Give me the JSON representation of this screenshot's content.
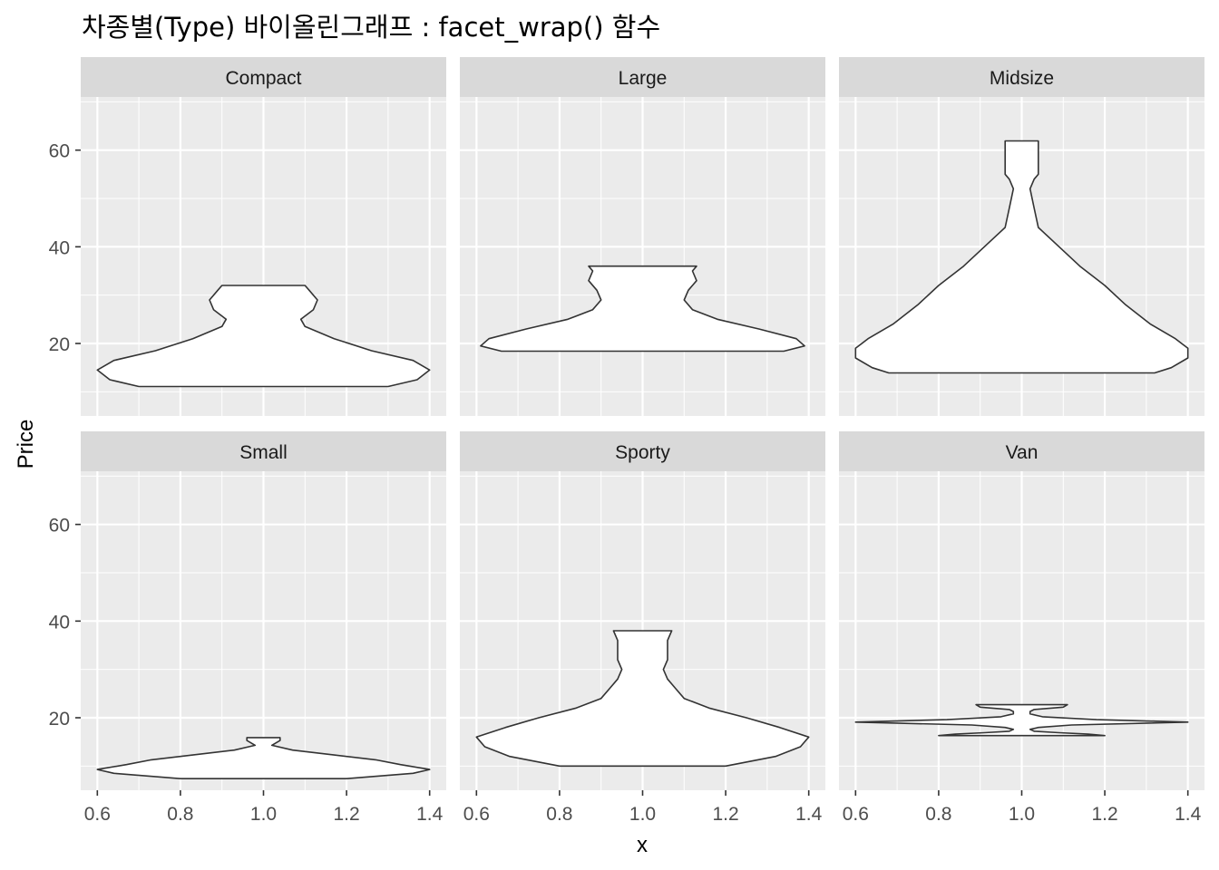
{
  "chart_data": {
    "type": "violin",
    "title": "차종별(Type) 바이올린그래프 : facet_wrap() 함수",
    "xlabel": "x",
    "ylabel": "Price",
    "xlim": [
      0.56,
      1.44
    ],
    "ylim": [
      5,
      71
    ],
    "x_ticks": [
      0.6,
      0.8,
      1.0,
      1.2,
      1.4
    ],
    "x_tick_labels": [
      "0.6",
      "0.8",
      "1.0",
      "1.2",
      "1.4"
    ],
    "y_ticks": [
      20,
      40,
      60
    ],
    "y_tick_labels": [
      "20",
      "40",
      "60"
    ],
    "grid": true,
    "facet_layout": {
      "rows": 2,
      "cols": 3
    },
    "panels": [
      {
        "label": "Compact",
        "profile": [
          [
            11.1,
            0.3
          ],
          [
            12.5,
            0.37
          ],
          [
            14.5,
            0.4
          ],
          [
            16.5,
            0.36
          ],
          [
            18.5,
            0.26
          ],
          [
            21,
            0.17
          ],
          [
            23.5,
            0.1
          ],
          [
            25,
            0.09
          ],
          [
            27,
            0.12
          ],
          [
            29,
            0.13
          ],
          [
            31,
            0.11
          ],
          [
            32,
            0.1
          ]
        ]
      },
      {
        "label": "Large",
        "profile": [
          [
            18.4,
            0.34
          ],
          [
            19.5,
            0.39
          ],
          [
            21,
            0.37
          ],
          [
            23,
            0.28
          ],
          [
            25,
            0.18
          ],
          [
            27,
            0.12
          ],
          [
            29,
            0.1
          ],
          [
            31,
            0.11
          ],
          [
            33,
            0.13
          ],
          [
            35,
            0.12
          ],
          [
            36,
            0.13
          ]
        ]
      },
      {
        "label": "Midsize",
        "profile": [
          [
            13.9,
            0.32
          ],
          [
            15,
            0.36
          ],
          [
            17,
            0.4
          ],
          [
            19,
            0.4
          ],
          [
            21,
            0.37
          ],
          [
            24,
            0.31
          ],
          [
            28,
            0.25
          ],
          [
            32,
            0.2
          ],
          [
            36,
            0.14
          ],
          [
            40,
            0.09
          ],
          [
            44,
            0.04
          ],
          [
            48,
            0.03
          ],
          [
            52,
            0.02
          ],
          [
            54,
            0.03
          ],
          [
            55,
            0.04
          ],
          [
            61.9,
            0.04
          ]
        ]
      },
      {
        "label": "Small",
        "profile": [
          [
            7.4,
            0.2
          ],
          [
            8.5,
            0.36
          ],
          [
            9.3,
            0.4
          ],
          [
            10.3,
            0.33
          ],
          [
            11.3,
            0.27
          ],
          [
            12.3,
            0.17
          ],
          [
            13.3,
            0.07
          ],
          [
            14.3,
            0.02
          ],
          [
            15.3,
            0.04
          ],
          [
            15.9,
            0.04
          ]
        ]
      },
      {
        "label": "Sporty",
        "profile": [
          [
            10,
            0.2
          ],
          [
            12,
            0.32
          ],
          [
            14,
            0.38
          ],
          [
            16,
            0.4
          ],
          [
            18,
            0.33
          ],
          [
            20,
            0.25
          ],
          [
            22,
            0.16
          ],
          [
            24,
            0.1
          ],
          [
            26,
            0.08
          ],
          [
            28,
            0.06
          ],
          [
            30,
            0.05
          ],
          [
            32,
            0.06
          ],
          [
            34,
            0.06
          ],
          [
            36,
            0.06
          ],
          [
            38,
            0.07
          ]
        ]
      },
      {
        "label": "Van",
        "profile": [
          [
            16.3,
            0.2
          ],
          [
            16.6,
            0.16
          ],
          [
            16.9,
            0.09
          ],
          [
            17.2,
            0.03
          ],
          [
            17.6,
            0.02
          ],
          [
            18,
            0.04
          ],
          [
            18.5,
            0.12
          ],
          [
            19.1,
            0.4
          ],
          [
            19.6,
            0.18
          ],
          [
            20.2,
            0.05
          ],
          [
            20.8,
            0.02
          ],
          [
            21.3,
            0.02
          ],
          [
            21.7,
            0.03
          ],
          [
            22.2,
            0.1
          ],
          [
            22.7,
            0.11
          ]
        ]
      }
    ]
  }
}
